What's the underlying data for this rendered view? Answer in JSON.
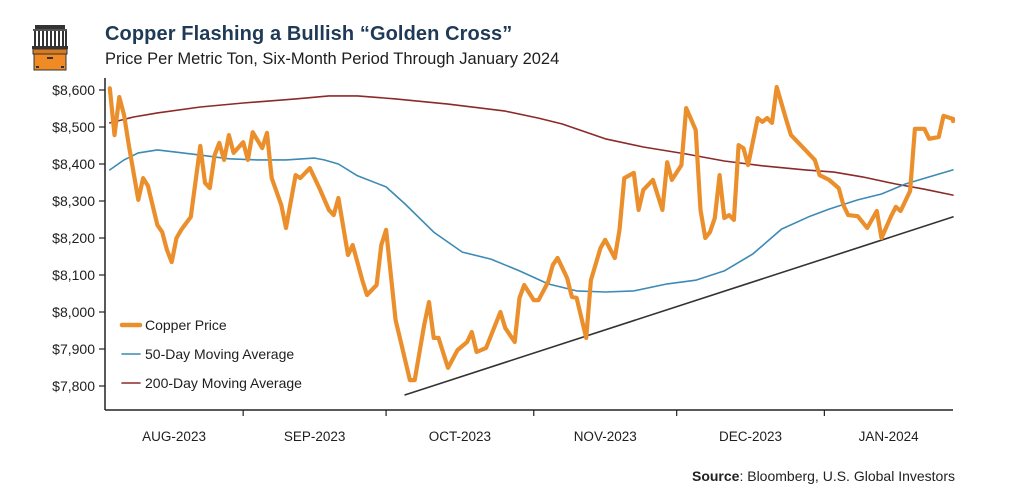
{
  "header": {
    "title": "Copper Flashing a Bullish “Golden Cross”",
    "subtitle": "Price Per Metric Ton, Six-Month Period Through January 2024",
    "logo_icon": "bank-building-icon"
  },
  "footer": {
    "source_label": "Source",
    "source_text": ": Bloomberg, U.S. Global Investors"
  },
  "colors": {
    "copper": "#eb8f2c",
    "ma50": "#3d8ab5",
    "ma200": "#8c2a2a",
    "trendline": "#333333",
    "title": "#1f3a57",
    "axis": "#222222"
  },
  "chart_data": {
    "type": "line",
    "title": "Copper Flashing a Bullish “Golden Cross”",
    "subtitle": "Price Per Metric Ton, Six-Month Period Through January 2024",
    "xlabel": "",
    "ylabel": "",
    "xlim": [
      "2023-08-03",
      "2024-01-28"
    ],
    "ylim": [
      7735,
      8620
    ],
    "yticks": [
      7800,
      7900,
      8000,
      8100,
      8200,
      8300,
      8400,
      8500,
      8600
    ],
    "ytick_labels": [
      "$7,800",
      "$7,900",
      "$8,000",
      "$8,100",
      "$8,200",
      "$8,300",
      "$8,400",
      "$8,500",
      "$8,600"
    ],
    "month_boundaries": [
      "2023-09-01",
      "2023-10-01",
      "2023-11-01",
      "2023-12-01",
      "2024-01-01"
    ],
    "xtick_labels": [
      "AUG-2023",
      "SEP-2023",
      "OCT-2023",
      "NOV-2023",
      "DEC-2023",
      "JAN-2024"
    ],
    "grid": false,
    "legend_position": "bottom-left",
    "series": [
      {
        "name": "Copper Price",
        "key": "copper",
        "points": [
          [
            "2023-08-04",
            8605
          ],
          [
            "2023-08-05",
            8478
          ],
          [
            "2023-08-06",
            8581
          ],
          [
            "2023-08-07",
            8532
          ],
          [
            "2023-08-08",
            8451
          ],
          [
            "2023-08-10",
            8303
          ],
          [
            "2023-08-11",
            8362
          ],
          [
            "2023-08-12",
            8341
          ],
          [
            "2023-08-14",
            8235
          ],
          [
            "2023-08-15",
            8216
          ],
          [
            "2023-08-16",
            8168
          ],
          [
            "2023-08-17",
            8135
          ],
          [
            "2023-08-18",
            8200
          ],
          [
            "2023-08-19",
            8222
          ],
          [
            "2023-08-21",
            8257
          ],
          [
            "2023-08-23",
            8449
          ],
          [
            "2023-08-24",
            8349
          ],
          [
            "2023-08-25",
            8335
          ],
          [
            "2023-08-26",
            8424
          ],
          [
            "2023-08-27",
            8457
          ],
          [
            "2023-08-28",
            8411
          ],
          [
            "2023-08-29",
            8478
          ],
          [
            "2023-08-30",
            8430
          ],
          [
            "2023-09-01",
            8459
          ],
          [
            "2023-09-02",
            8411
          ],
          [
            "2023-09-03",
            8486
          ],
          [
            "2023-09-05",
            8443
          ],
          [
            "2023-09-06",
            8484
          ],
          [
            "2023-09-07",
            8362
          ],
          [
            "2023-09-09",
            8289
          ],
          [
            "2023-09-10",
            8227
          ],
          [
            "2023-09-12",
            8370
          ],
          [
            "2023-09-13",
            8362
          ],
          [
            "2023-09-15",
            8389
          ],
          [
            "2023-09-17",
            8335
          ],
          [
            "2023-09-19",
            8276
          ],
          [
            "2023-09-20",
            8262
          ],
          [
            "2023-09-21",
            8308
          ],
          [
            "2023-09-23",
            8154
          ],
          [
            "2023-09-24",
            8181
          ],
          [
            "2023-09-26",
            8086
          ],
          [
            "2023-09-27",
            8046
          ],
          [
            "2023-09-29",
            8073
          ],
          [
            "2023-09-30",
            8181
          ],
          [
            "2023-10-01",
            8222
          ],
          [
            "2023-10-03",
            7978
          ],
          [
            "2023-10-04",
            7924
          ],
          [
            "2023-10-06",
            7816
          ],
          [
            "2023-10-07",
            7816
          ],
          [
            "2023-10-09",
            7965
          ],
          [
            "2023-10-10",
            8027
          ],
          [
            "2023-10-11",
            7930
          ],
          [
            "2023-10-12",
            7930
          ],
          [
            "2023-10-14",
            7849
          ],
          [
            "2023-10-16",
            7897
          ],
          [
            "2023-10-18",
            7919
          ],
          [
            "2023-10-19",
            7946
          ],
          [
            "2023-10-20",
            7892
          ],
          [
            "2023-10-22",
            7903
          ],
          [
            "2023-10-25",
            8000
          ],
          [
            "2023-10-26",
            7957
          ],
          [
            "2023-10-28",
            7919
          ],
          [
            "2023-10-29",
            8038
          ],
          [
            "2023-10-30",
            8073
          ],
          [
            "2023-11-01",
            8032
          ],
          [
            "2023-11-02",
            8032
          ],
          [
            "2023-11-04",
            8081
          ],
          [
            "2023-11-05",
            8127
          ],
          [
            "2023-11-06",
            8146
          ],
          [
            "2023-11-08",
            8092
          ],
          [
            "2023-11-09",
            8041
          ],
          [
            "2023-11-10",
            8038
          ],
          [
            "2023-11-12",
            7930
          ],
          [
            "2023-11-13",
            8086
          ],
          [
            "2023-11-15",
            8173
          ],
          [
            "2023-11-16",
            8195
          ],
          [
            "2023-11-18",
            8146
          ],
          [
            "2023-11-19",
            8222
          ],
          [
            "2023-11-20",
            8362
          ],
          [
            "2023-11-22",
            8376
          ],
          [
            "2023-11-23",
            8276
          ],
          [
            "2023-11-24",
            8330
          ],
          [
            "2023-11-26",
            8357
          ],
          [
            "2023-11-28",
            8276
          ],
          [
            "2023-11-29",
            8405
          ],
          [
            "2023-11-30",
            8357
          ],
          [
            "2023-12-02",
            8397
          ],
          [
            "2023-12-03",
            8551
          ],
          [
            "2023-12-05",
            8492
          ],
          [
            "2023-12-06",
            8276
          ],
          [
            "2023-12-07",
            8200
          ],
          [
            "2023-12-08",
            8216
          ],
          [
            "2023-12-09",
            8254
          ],
          [
            "2023-12-10",
            8370
          ],
          [
            "2023-12-11",
            8254
          ],
          [
            "2023-12-12",
            8262
          ],
          [
            "2023-12-13",
            8249
          ],
          [
            "2023-12-14",
            8451
          ],
          [
            "2023-12-15",
            8443
          ],
          [
            "2023-12-16",
            8397
          ],
          [
            "2023-12-18",
            8524
          ],
          [
            "2023-12-19",
            8514
          ],
          [
            "2023-12-20",
            8524
          ],
          [
            "2023-12-21",
            8511
          ],
          [
            "2023-12-22",
            8608
          ],
          [
            "2023-12-24",
            8519
          ],
          [
            "2023-12-25",
            8478
          ],
          [
            "2023-12-28",
            8438
          ],
          [
            "2023-12-30",
            8411
          ],
          [
            "2023-12-31",
            8370
          ],
          [
            "2024-01-02",
            8357
          ],
          [
            "2024-01-04",
            8335
          ],
          [
            "2024-01-05",
            8289
          ],
          [
            "2024-01-06",
            8262
          ],
          [
            "2024-01-08",
            8259
          ],
          [
            "2024-01-09",
            8243
          ],
          [
            "2024-01-10",
            8227
          ],
          [
            "2024-01-12",
            8273
          ],
          [
            "2024-01-13",
            8200
          ],
          [
            "2024-01-15",
            8259
          ],
          [
            "2024-01-16",
            8284
          ],
          [
            "2024-01-17",
            8273
          ],
          [
            "2024-01-19",
            8327
          ],
          [
            "2024-01-20",
            8495
          ],
          [
            "2024-01-22",
            8495
          ],
          [
            "2024-01-23",
            8468
          ],
          [
            "2024-01-25",
            8473
          ],
          [
            "2024-01-26",
            8530
          ],
          [
            "2024-01-28",
            8522
          ],
          [
            "2024-01-28",
            8516
          ]
        ]
      },
      {
        "name": "50-Day Moving Average",
        "key": "ma50",
        "points": [
          [
            "2023-08-04",
            8384
          ],
          [
            "2023-08-07",
            8411
          ],
          [
            "2023-08-10",
            8430
          ],
          [
            "2023-08-14",
            8438
          ],
          [
            "2023-08-18",
            8432
          ],
          [
            "2023-08-23",
            8424
          ],
          [
            "2023-08-29",
            8414
          ],
          [
            "2023-09-04",
            8411
          ],
          [
            "2023-09-10",
            8411
          ],
          [
            "2023-09-16",
            8416
          ],
          [
            "2023-09-18",
            8411
          ],
          [
            "2023-09-21",
            8400
          ],
          [
            "2023-09-25",
            8368
          ],
          [
            "2023-10-01",
            8338
          ],
          [
            "2023-10-05",
            8292
          ],
          [
            "2023-10-11",
            8216
          ],
          [
            "2023-10-17",
            8162
          ],
          [
            "2023-10-23",
            8143
          ],
          [
            "2023-10-29",
            8111
          ],
          [
            "2023-11-04",
            8076
          ],
          [
            "2023-11-10",
            8057
          ],
          [
            "2023-11-16",
            8054
          ],
          [
            "2023-11-22",
            8057
          ],
          [
            "2023-11-29",
            8076
          ],
          [
            "2023-12-05",
            8086
          ],
          [
            "2023-12-11",
            8111
          ],
          [
            "2023-12-17",
            8157
          ],
          [
            "2023-12-23",
            8224
          ],
          [
            "2023-12-29",
            8259
          ],
          [
            "2024-01-02",
            8278
          ],
          [
            "2024-01-08",
            8303
          ],
          [
            "2024-01-13",
            8319
          ],
          [
            "2024-01-18",
            8346
          ],
          [
            "2024-01-23",
            8365
          ],
          [
            "2024-01-28",
            8384
          ]
        ]
      },
      {
        "name": "200-Day Moving Average",
        "key": "ma200",
        "points": [
          [
            "2023-08-04",
            8511
          ],
          [
            "2023-08-09",
            8527
          ],
          [
            "2023-08-14",
            8538
          ],
          [
            "2023-08-23",
            8554
          ],
          [
            "2023-09-01",
            8565
          ],
          [
            "2023-09-12",
            8576
          ],
          [
            "2023-09-19",
            8584
          ],
          [
            "2023-09-25",
            8584
          ],
          [
            "2023-10-03",
            8576
          ],
          [
            "2023-10-14",
            8562
          ],
          [
            "2023-10-26",
            8543
          ],
          [
            "2023-11-02",
            8524
          ],
          [
            "2023-11-07",
            8508
          ],
          [
            "2023-11-16",
            8468
          ],
          [
            "2023-11-24",
            8446
          ],
          [
            "2023-12-03",
            8427
          ],
          [
            "2023-12-11",
            8408
          ],
          [
            "2023-12-19",
            8395
          ],
          [
            "2023-12-28",
            8384
          ],
          [
            "2024-01-03",
            8378
          ],
          [
            "2024-01-09",
            8365
          ],
          [
            "2024-01-16",
            8346
          ],
          [
            "2024-01-22",
            8332
          ],
          [
            "2024-01-28",
            8316
          ]
        ]
      },
      {
        "name": "Trendline",
        "key": "trendline",
        "points": [
          [
            "2023-10-05",
            7776
          ],
          [
            "2024-01-28",
            8257
          ]
        ]
      }
    ],
    "legend": [
      "Copper Price",
      "50-Day Moving Average",
      "200-Day Moving Average"
    ]
  }
}
